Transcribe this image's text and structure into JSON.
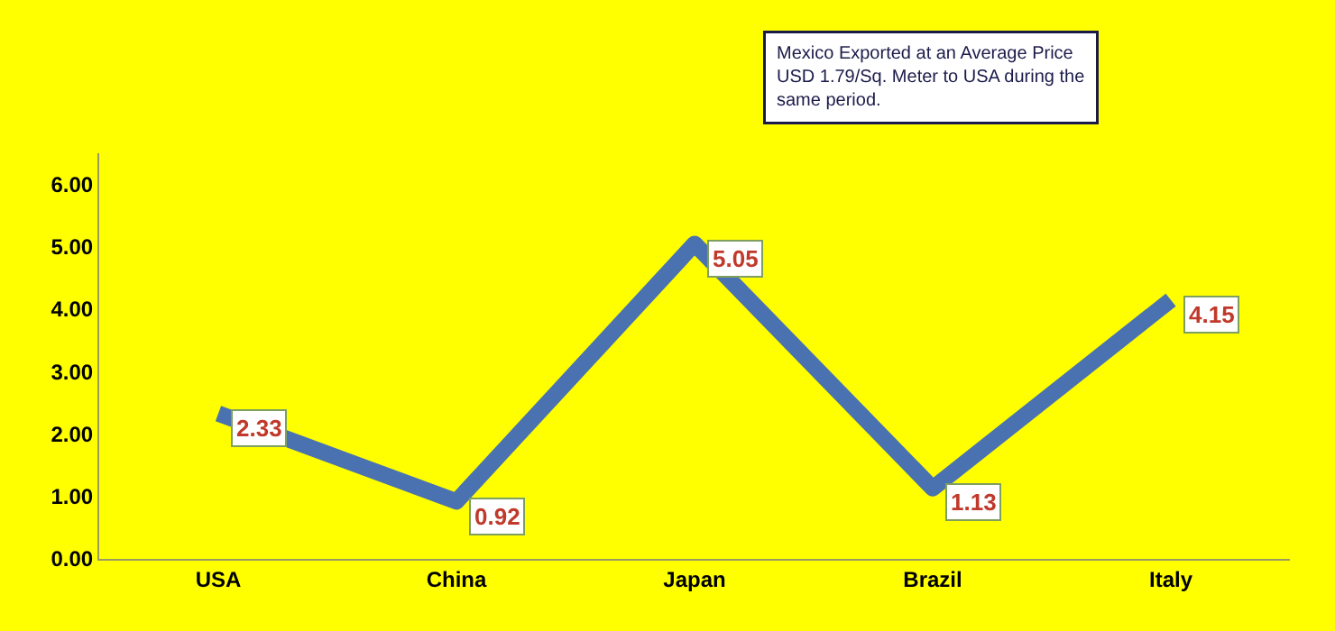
{
  "chart_data": {
    "type": "line",
    "categories": [
      "USA",
      "China",
      "Japan",
      "Brazil",
      "Italy"
    ],
    "series": [
      {
        "color": "#4a72b0",
        "values": [
          2.33,
          0.92,
          5.05,
          1.13,
          4.15
        ]
      }
    ],
    "ylim": [
      0,
      6.5
    ],
    "yticks": [
      {
        "value": 0,
        "label": "0.00"
      },
      {
        "value": 1,
        "label": "1.00"
      },
      {
        "value": 2,
        "label": "2.00"
      },
      {
        "value": 3,
        "label": "3.00"
      },
      {
        "value": 4,
        "label": "4.00"
      },
      {
        "value": 5,
        "label": "5.00"
      },
      {
        "value": 6,
        "label": "6.00"
      }
    ],
    "annotations": [
      "Mexico Exported at an Average Price USD 1.79/Sq. Meter to USA during the same period."
    ],
    "data_labels": true,
    "grid": false,
    "marker": "none",
    "line_style": "solid"
  }
}
